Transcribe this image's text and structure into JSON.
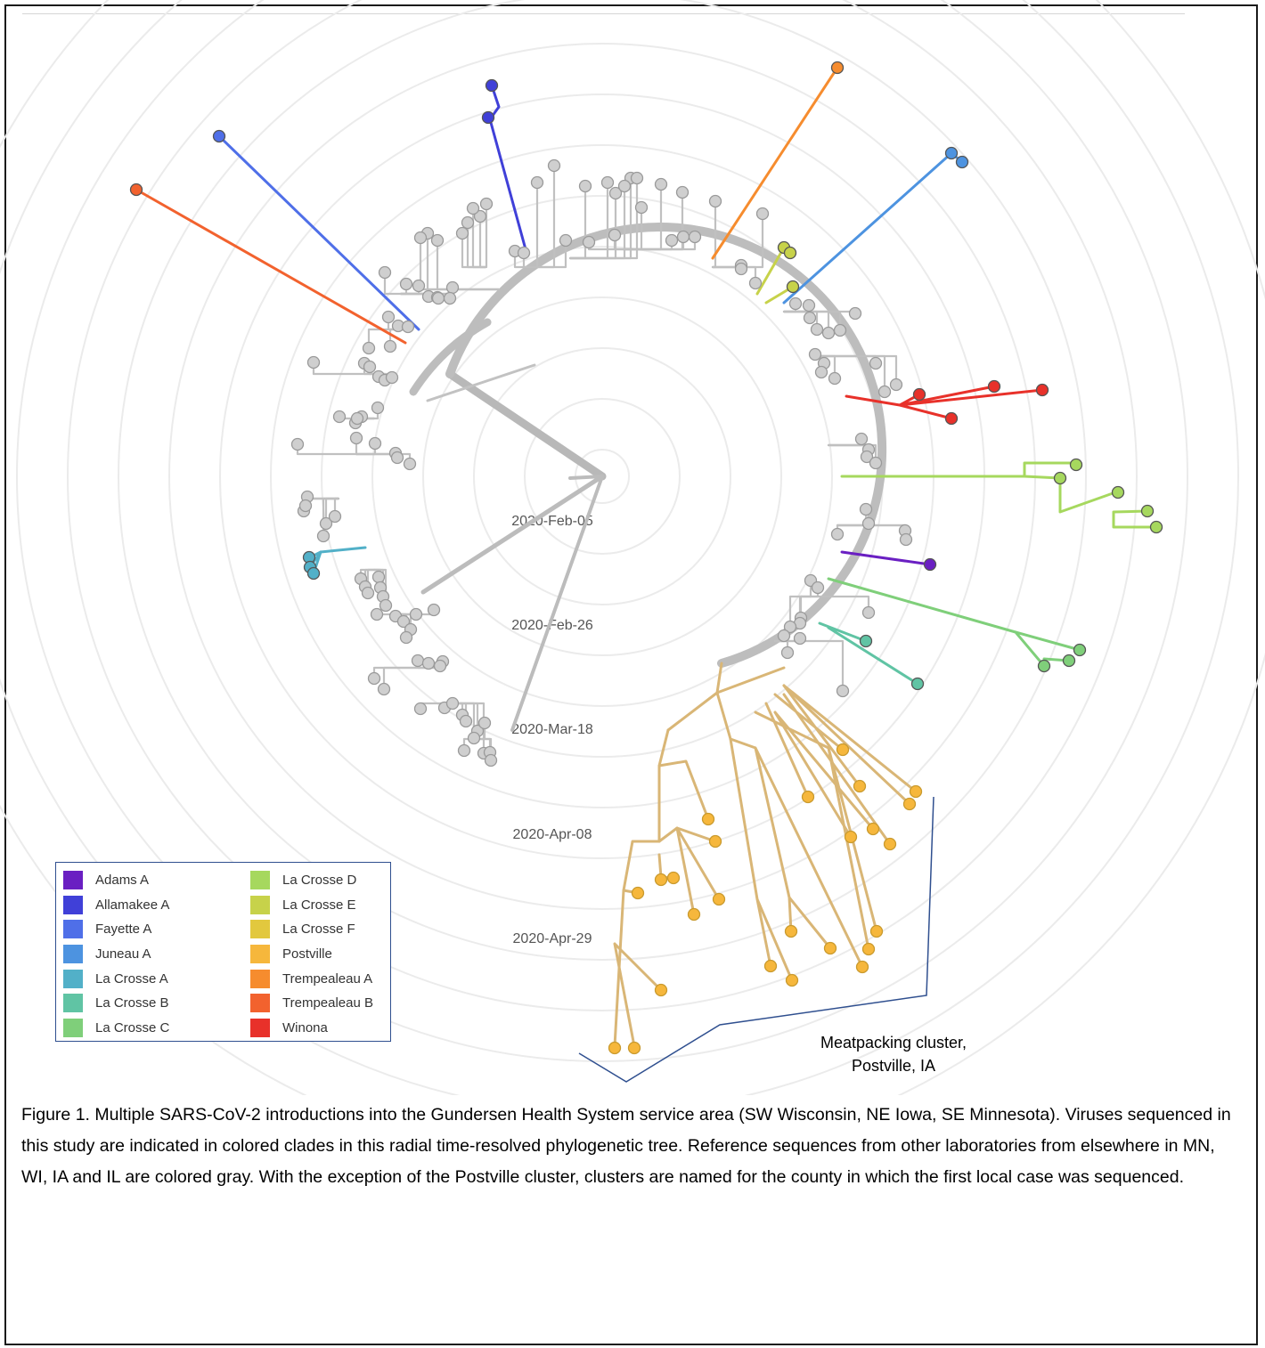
{
  "chart_data": {
    "type": "radial-phylogenetic-tree",
    "time_labels": [
      "2020-Feb-05",
      "2020-Feb-26",
      "2020-Mar-18",
      "2020-Apr-08",
      "2020-Apr-29"
    ],
    "legend": [
      {
        "name": "Adams A",
        "color": "#6a1fc2"
      },
      {
        "name": "Allamakee A",
        "color": "#4040d8"
      },
      {
        "name": "Fayette A",
        "color": "#4f6fe8"
      },
      {
        "name": "Juneau A",
        "color": "#4d93e0"
      },
      {
        "name": "La Crosse A",
        "color": "#52b0c8"
      },
      {
        "name": "La Crosse B",
        "color": "#60c4a4"
      },
      {
        "name": "La Crosse C",
        "color": "#7fcf7a"
      },
      {
        "name": "La Crosse D",
        "color": "#a6d85e"
      },
      {
        "name": "La Crosse E",
        "color": "#c7d24a"
      },
      {
        "name": "La Crosse F",
        "color": "#e2c83e"
      },
      {
        "name": "Postville",
        "color": "#f6b73c"
      },
      {
        "name": "Trempealeau A",
        "color": "#f68c2e"
      },
      {
        "name": "Trempealeau B",
        "color": "#f2622e"
      },
      {
        "name": "Winona",
        "color": "#e8312a"
      }
    ],
    "reference_color": "#c0c0c0"
  },
  "annotation": {
    "line1": "Meatpacking cluster,",
    "line2": "Postville, IA"
  },
  "caption": "Figure 1. Multiple SARS-CoV-2 introductions into the Gundersen Health System service area (SW Wisconsin, NE Iowa, SE Minnesota). Viruses sequenced in this study are indicated in colored clades in this radial time-resolved phylogenetic tree. Reference sequences from other laboratories from elsewhere in MN, WI, IA and IL are colored gray. With the exception of the Postville cluster, clusters are named for the county in which the first local case was sequenced."
}
